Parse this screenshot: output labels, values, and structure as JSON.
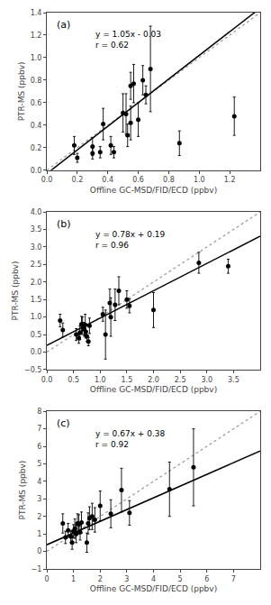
{
  "chart_data": [
    {
      "type": "scatter",
      "xlabel": "Offline GC-MSD/FID/ECD (ppbv)",
      "ylabel": "PTR-MS (ppbv)",
      "annotations": [
        "(a)",
        "y = 1.05x - 0.03",
        "r = 0.62"
      ],
      "xlim": [
        0.0,
        1.4
      ],
      "ylim": [
        0.0,
        1.4
      ],
      "xticks": [
        {
          "value": 0,
          "label": "0.0"
        },
        0.2,
        0.4,
        0.6,
        0.8,
        {
          "value": 1,
          "label": "1.0"
        },
        1.2
      ],
      "yticks": [
        {
          "value": 0,
          "label": "0.0"
        },
        0.2,
        0.4,
        0.6,
        0.8,
        {
          "value": 1,
          "label": "1.0"
        },
        1.2,
        1.4
      ],
      "grid": false,
      "series": [
        {
          "type": "line",
          "line_style": "dotted",
          "color": "#999999",
          "x": [
            0.0,
            1.4
          ],
          "values": [
            0.0,
            1.4
          ]
        },
        {
          "type": "line",
          "line_style": "solid",
          "color": "black",
          "slope": 1.05,
          "intercept": -0.03
        },
        {
          "type": "scatter",
          "marker": "circle",
          "color": "black",
          "x": [
            0.18,
            0.2,
            0.3,
            0.3,
            0.35,
            0.37,
            0.42,
            0.44,
            0.5,
            0.52,
            0.53,
            0.55,
            0.55,
            0.57,
            0.6,
            0.63,
            0.65,
            0.68,
            0.87,
            1.23
          ],
          "values": [
            0.22,
            0.11,
            0.15,
            0.21,
            0.16,
            0.41,
            0.22,
            0.16,
            0.51,
            0.5,
            0.31,
            0.75,
            0.42,
            0.77,
            0.45,
            0.8,
            0.67,
            0.9,
            0.24,
            0.48
          ],
          "yerr": [
            0.08,
            0.04,
            0.05,
            0.08,
            0.05,
            0.14,
            0.08,
            0.05,
            0.17,
            0.18,
            0.1,
            0.12,
            0.15,
            0.17,
            0.15,
            0.13,
            0.08,
            0.38,
            0.11,
            0.17
          ]
        }
      ]
    },
    {
      "type": "scatter",
      "xlabel": "Offline GC-MSD/FID/ECD (ppbv)",
      "ylabel": "PTR-MS (ppbv)",
      "annotations": [
        "(b)",
        "y = 0.78x + 0.19",
        "r = 0.96"
      ],
      "xlim": [
        0.0,
        4.0
      ],
      "ylim": [
        -0.5,
        4.0
      ],
      "xticks": [
        {
          "value": 0,
          "label": "0.0"
        },
        0.5,
        {
          "value": 1,
          "label": "1.0"
        },
        1.5,
        {
          "value": 2,
          "label": "2.0"
        },
        2.5,
        {
          "value": 3,
          "label": "3.0"
        },
        3.5
      ],
      "yticks": [
        {
          "value": -0.5,
          "label": "−0.5"
        },
        {
          "value": 0,
          "label": "0.0"
        },
        0.5,
        {
          "value": 1,
          "label": "1.0"
        },
        1.5,
        {
          "value": 2,
          "label": "2.0"
        },
        2.5,
        {
          "value": 3,
          "label": "3.0"
        },
        3.5,
        {
          "value": 4,
          "label": "4.0"
        }
      ],
      "grid": false,
      "series": [
        {
          "type": "line",
          "line_style": "dotted",
          "color": "#999999",
          "x": [
            0.0,
            4.0
          ],
          "values": [
            0.0,
            4.0
          ]
        },
        {
          "type": "line",
          "line_style": "solid",
          "color": "black",
          "slope": 0.78,
          "intercept": 0.19
        },
        {
          "type": "scatter",
          "marker": "circle",
          "color": "black",
          "x": [
            0.25,
            0.3,
            0.55,
            0.6,
            0.62,
            0.65,
            0.67,
            0.7,
            0.72,
            0.73,
            0.75,
            0.78,
            0.8,
            1.05,
            1.1,
            1.18,
            1.2,
            1.28,
            1.35,
            1.5,
            1.55,
            2.0,
            2.85,
            3.4
          ],
          "values": [
            0.9,
            0.63,
            0.5,
            0.4,
            0.55,
            0.8,
            0.75,
            0.65,
            0.78,
            0.58,
            0.45,
            0.3,
            0.75,
            1.08,
            0.5,
            1.4,
            1.0,
            1.35,
            1.75,
            1.5,
            1.32,
            1.2,
            2.55,
            2.45
          ],
          "yerr": [
            0.18,
            0.2,
            0.17,
            0.15,
            0.2,
            0.22,
            0.25,
            0.2,
            0.3,
            0.18,
            0.15,
            0.12,
            0.22,
            0.2,
            0.7,
            0.4,
            0.55,
            0.45,
            0.4,
            0.25,
            0.2,
            0.5,
            0.3,
            0.2
          ]
        }
      ]
    },
    {
      "type": "scatter",
      "xlabel": "Offline GC-MSD/FID/ECD (ppbv)",
      "ylabel": "PTR-MS (ppbv)",
      "annotations": [
        "(c)",
        "y = 0.67x + 0.38",
        "r = 0.92"
      ],
      "xlim": [
        0.0,
        8.0
      ],
      "ylim": [
        -1.0,
        8.0
      ],
      "xticks": [
        0,
        1,
        2,
        3,
        4,
        5,
        6,
        7
      ],
      "yticks": [
        {
          "value": -1,
          "label": "−1"
        },
        0,
        1,
        2,
        3,
        4,
        5,
        6,
        7,
        8
      ],
      "grid": false,
      "series": [
        {
          "type": "line",
          "line_style": "dotted",
          "color": "#999999",
          "x": [
            0.0,
            8.0
          ],
          "values": [
            0.0,
            8.0
          ]
        },
        {
          "type": "line",
          "line_style": "solid",
          "color": "black",
          "slope": 0.67,
          "intercept": 0.38
        },
        {
          "type": "scatter",
          "marker": "circle",
          "color": "black",
          "x": [
            0.6,
            0.7,
            0.8,
            0.9,
            0.95,
            1.0,
            1.05,
            1.1,
            1.15,
            1.2,
            1.25,
            1.3,
            1.5,
            1.55,
            1.6,
            1.7,
            1.8,
            2.0,
            2.4,
            2.8,
            3.1,
            4.6,
            5.5
          ],
          "values": [
            1.6,
            0.8,
            1.2,
            0.85,
            0.5,
            1.15,
            1.3,
            1.0,
            1.6,
            1.55,
            1.1,
            1.65,
            0.5,
            1.6,
            1.9,
            2.0,
            1.8,
            2.6,
            2.15,
            3.5,
            2.2,
            3.55,
            4.8
          ],
          "yerr": [
            0.55,
            0.35,
            0.4,
            0.35,
            0.38,
            0.38,
            0.55,
            0.5,
            0.55,
            0.55,
            0.45,
            0.6,
            0.55,
            0.6,
            0.65,
            0.75,
            0.7,
            0.85,
            0.8,
            1.25,
            0.7,
            1.55,
            2.2
          ]
        }
      ]
    }
  ]
}
